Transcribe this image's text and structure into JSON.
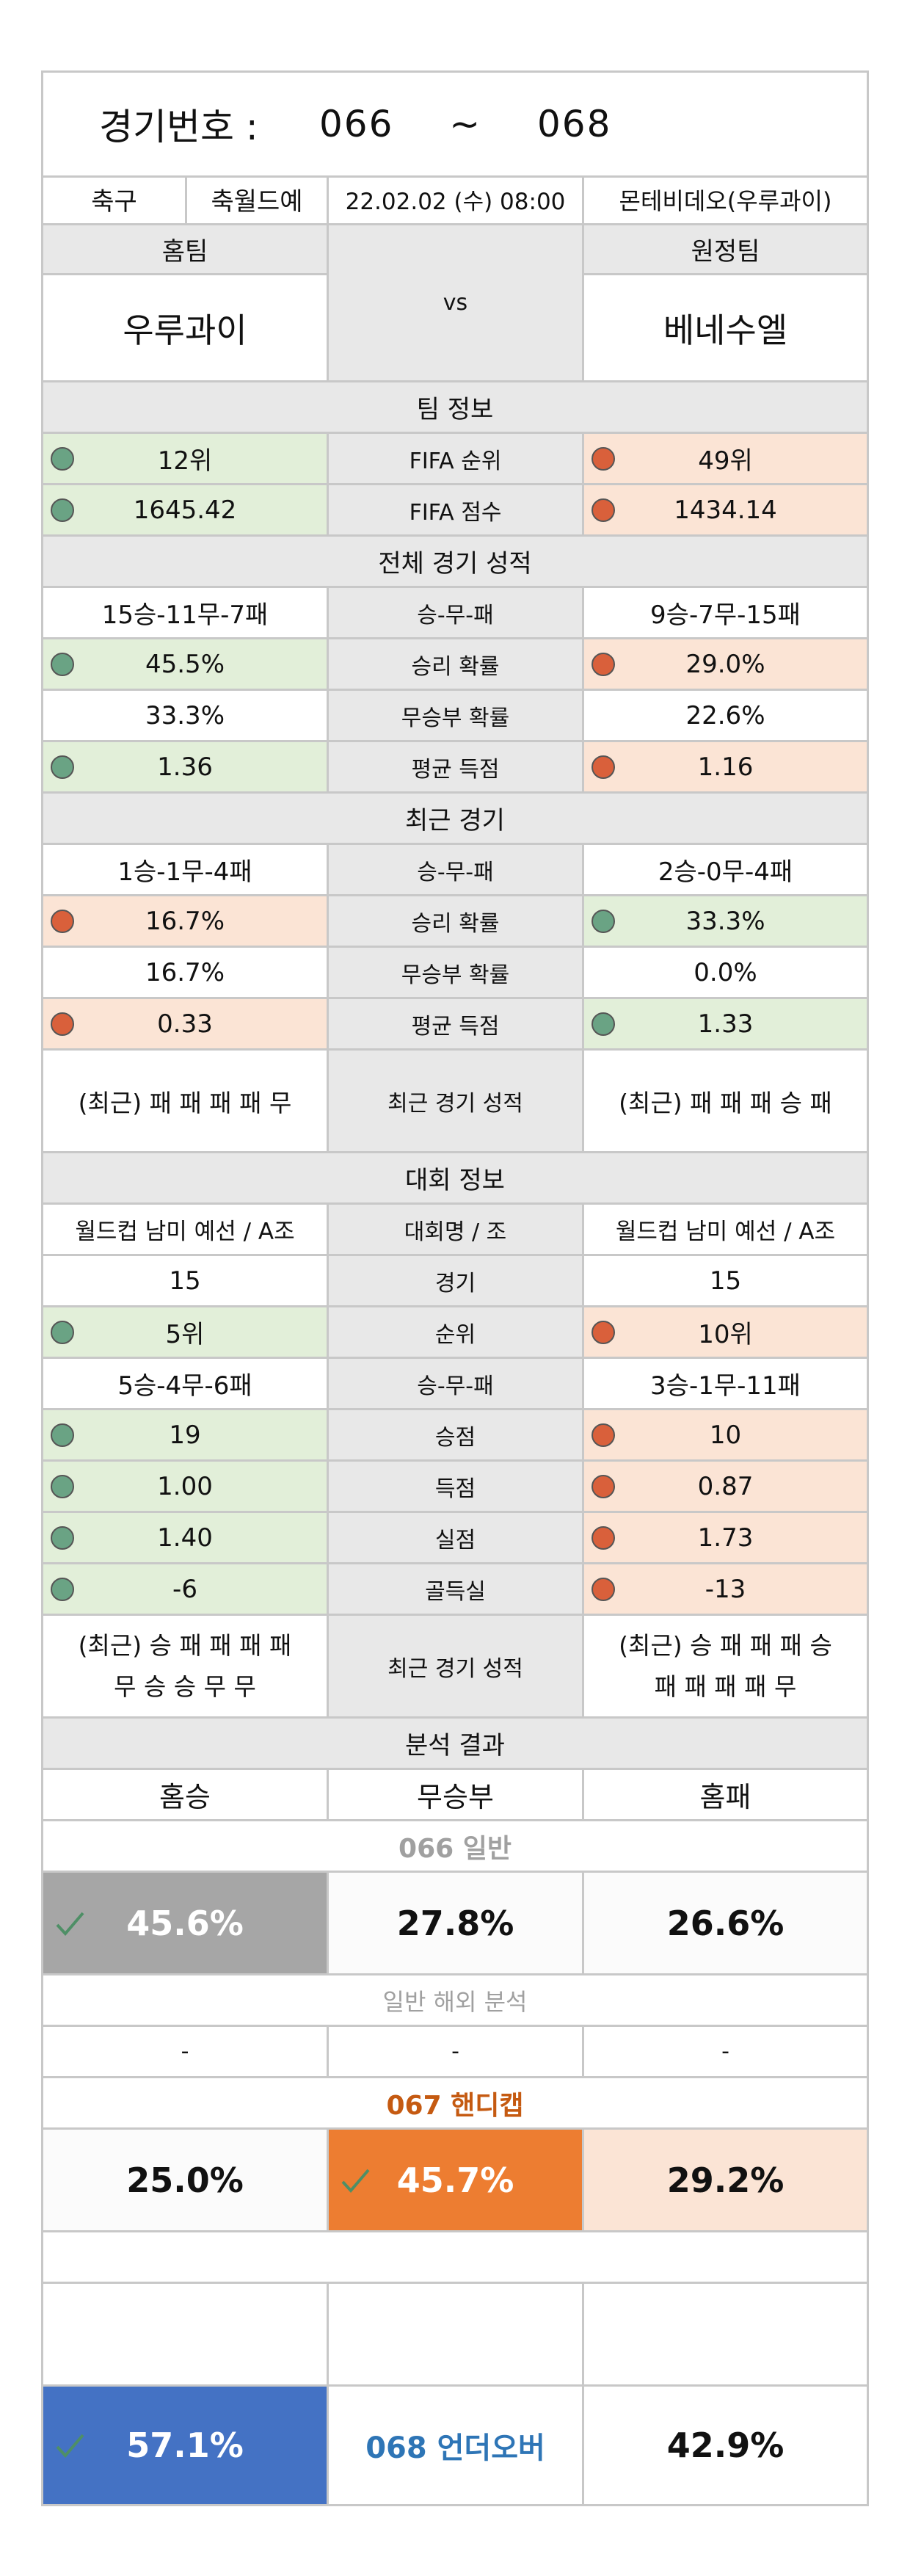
{
  "header": {
    "label": "경기번호 :",
    "from": "066",
    "tilde": "~",
    "to": "068"
  },
  "match": {
    "sport": "축구",
    "league": "축월드예",
    "datetime": "22.02.02 (수) 08:00",
    "venue": "몬테비데오(우루과이)"
  },
  "teams": {
    "home_label": "홈팀",
    "away_label": "원정팀",
    "vs": "vs",
    "home": "우루과이",
    "away": "베네수엘"
  },
  "team_info": {
    "section": "팀 정보",
    "rows": [
      {
        "home": "12위",
        "label": "FIFA 순위",
        "away": "49위"
      },
      {
        "home": "1645.42",
        "label": "FIFA 점수",
        "away": "1434.14"
      }
    ]
  },
  "overall": {
    "section": "전체 경기 성적",
    "rows": [
      {
        "home": "15승-11무-7패",
        "label": "승-무-패",
        "away": "9승-7무-15패"
      },
      {
        "home": "45.5%",
        "label": "승리 확률",
        "away": "29.0%"
      },
      {
        "home": "33.3%",
        "label": "무승부 확률",
        "away": "22.6%"
      },
      {
        "home": "1.36",
        "label": "평균 득점",
        "away": "1.16"
      }
    ]
  },
  "recent": {
    "section": "최근 경기",
    "rows": [
      {
        "home": "1승-1무-4패",
        "label": "승-무-패",
        "away": "2승-0무-4패"
      },
      {
        "home": "16.7%",
        "label": "승리 확률",
        "away": "33.3%"
      },
      {
        "home": "16.7%",
        "label": "무승부 확률",
        "away": "0.0%"
      },
      {
        "home": "0.33",
        "label": "평균 득점",
        "away": "1.33"
      },
      {
        "home": "(최근) 패 패 패 패 무",
        "label": "최근 경기 성적",
        "away": "(최근) 패 패 패 승 패"
      }
    ]
  },
  "tournament": {
    "section": "대회 정보",
    "rows": [
      {
        "home": "월드컵 남미 예선 / A조",
        "label": "대회명 / 조",
        "away": "월드컵 남미 예선 / A조"
      },
      {
        "home": "15",
        "label": "경기",
        "away": "15"
      },
      {
        "home": "5위",
        "label": "순위",
        "away": "10위"
      },
      {
        "home": "5승-4무-6패",
        "label": "승-무-패",
        "away": "3승-1무-11패"
      },
      {
        "home": "19",
        "label": "승점",
        "away": "10"
      },
      {
        "home": "1.00",
        "label": "득점",
        "away": "0.87"
      },
      {
        "home": "1.40",
        "label": "실점",
        "away": "1.73"
      },
      {
        "home": "-6",
        "label": "골득실",
        "away": "-13"
      }
    ],
    "form": {
      "label": "최근 경기 성적",
      "home_line1": "(최근) 승 패 패 패 패",
      "home_line2": "무 승 승 무 무",
      "away_line1": "(최근) 승 패 패 패 승",
      "away_line2": "패 패 패 패 무"
    }
  },
  "analysis": {
    "section": "분석 결과",
    "cols": {
      "win": "홈승",
      "draw": "무승부",
      "lose": "홈패"
    },
    "general": {
      "title": "066 일반",
      "win": "45.6%",
      "draw": "27.8%",
      "lose": "26.6%"
    },
    "overseas": {
      "title": "일반 해외 분석",
      "win": "-",
      "draw": "-",
      "lose": "-"
    },
    "handicap": {
      "title": "067 핸디캡",
      "win": "25.0%",
      "draw": "45.7%",
      "lose": "29.2%"
    },
    "underover": {
      "title": "068 언더오버",
      "left": "57.1%",
      "right": "42.9%"
    }
  },
  "colors": {
    "border": "#c8c8c8",
    "gray": "#e8e8e8",
    "green": "#e2efd9",
    "salmon": "#fbe4d5",
    "dot_green": "#6aa384",
    "dot_red": "#d9603b",
    "gray_pick": "#a6a6a6",
    "orange_pick": "#ed7d31",
    "blue_pick": "#4472c4",
    "orange_text": "#c55a11",
    "blue_text": "#2e75b6"
  }
}
